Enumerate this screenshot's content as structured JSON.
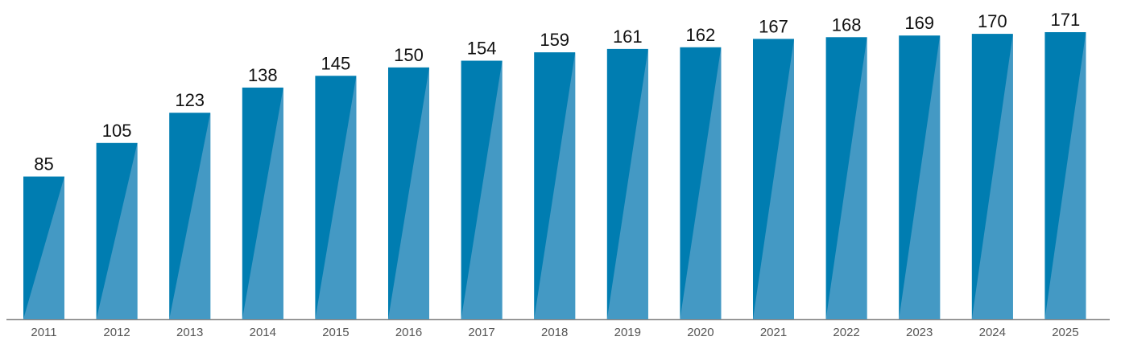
{
  "chart_data": {
    "type": "bar",
    "title": "",
    "xlabel": "",
    "ylabel": "",
    "categories": [
      "2011",
      "2012",
      "2013",
      "2014",
      "2015",
      "2016",
      "2017",
      "2018",
      "2019",
      "2020",
      "2021",
      "2022",
      "2023",
      "2024",
      "2025"
    ],
    "values": [
      85,
      105,
      123,
      138,
      145,
      150,
      154,
      159,
      161,
      162,
      167,
      168,
      169,
      170,
      171
    ],
    "ylim": [
      0,
      171
    ],
    "grid": false,
    "legend": "none",
    "data_labels": true,
    "colors": {
      "bar_dark": "#007DB1",
      "bar_light": "#4499C4",
      "axis": "#888888",
      "label": "#111111",
      "tick": "#555555"
    }
  }
}
